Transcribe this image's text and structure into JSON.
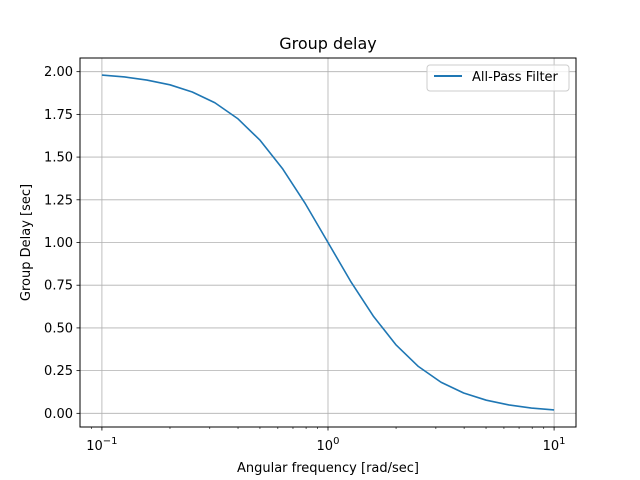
{
  "chart_data": {
    "type": "line",
    "title": "Group delay",
    "xlabel": "Angular frequency [rad/sec]",
    "ylabel": "Group Delay [sec]",
    "x_scale": "log",
    "xlim": [
      0.08,
      12.5
    ],
    "ylim": [
      -0.08,
      2.08
    ],
    "x_ticks": [
      {
        "value": 0.1,
        "base": "10",
        "exp": "−1"
      },
      {
        "value": 1,
        "base": "10",
        "exp": "0"
      },
      {
        "value": 10,
        "base": "10",
        "exp": "1"
      }
    ],
    "y_ticks": [
      {
        "value": 0.0,
        "label": "0.00"
      },
      {
        "value": 0.25,
        "label": "0.25"
      },
      {
        "value": 0.5,
        "label": "0.50"
      },
      {
        "value": 0.75,
        "label": "0.75"
      },
      {
        "value": 1.0,
        "label": "1.00"
      },
      {
        "value": 1.25,
        "label": "1.25"
      },
      {
        "value": 1.5,
        "label": "1.50"
      },
      {
        "value": 1.75,
        "label": "1.75"
      },
      {
        "value": 2.0,
        "label": "2.00"
      }
    ],
    "grid": true,
    "legend_position": "top-right",
    "series": [
      {
        "name": "All-Pass Filter",
        "color": "#1f77b4",
        "x": [
          0.1,
          0.126,
          0.158,
          0.2,
          0.251,
          0.316,
          0.398,
          0.501,
          0.631,
          0.794,
          1.0,
          1.259,
          1.585,
          1.995,
          2.512,
          3.162,
          3.981,
          5.012,
          6.31,
          7.943,
          10.0
        ],
        "y": [
          1.98,
          1.969,
          1.951,
          1.923,
          1.881,
          1.818,
          1.726,
          1.598,
          1.43,
          1.227,
          1.0,
          0.773,
          0.57,
          0.402,
          0.274,
          0.182,
          0.119,
          0.077,
          0.049,
          0.031,
          0.02
        ]
      }
    ]
  }
}
